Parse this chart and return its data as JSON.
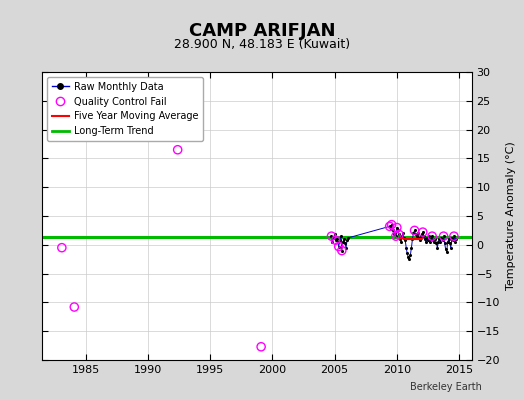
{
  "title": "CAMP ARIFJAN",
  "subtitle": "28.900 N, 48.183 E (Kuwait)",
  "ylabel": "Temperature Anomaly (°C)",
  "credit": "Berkeley Earth",
  "xlim": [
    1981.5,
    2016
  ],
  "ylim": [
    -20,
    30
  ],
  "yticks": [
    -20,
    -15,
    -10,
    -5,
    0,
    5,
    10,
    15,
    20,
    25,
    30
  ],
  "xticks": [
    1985,
    1990,
    1995,
    2000,
    2005,
    2010,
    2015
  ],
  "background_color": "#d8d8d8",
  "plot_bg_color": "#ffffff",
  "long_term_trend_y": 1.3,
  "long_term_trend_color": "#00bb00",
  "five_year_avg_color": "#ff0000",
  "raw_line_color": "#0000cc",
  "raw_dot_color": "#000000",
  "qc_fail_color": "#ff00ff",
  "isolated_qc_points": [
    [
      1983.1,
      -0.5
    ],
    [
      1984.1,
      -10.8
    ],
    [
      1992.4,
      16.5
    ],
    [
      1999.1,
      -17.7
    ]
  ],
  "connected_data": [
    [
      2004.75,
      1.5
    ],
    [
      2004.83,
      0.5
    ],
    [
      2004.92,
      1.2
    ],
    [
      2005.0,
      1.8
    ],
    [
      2005.08,
      0.8
    ],
    [
      2005.17,
      1.0
    ],
    [
      2005.25,
      0.5
    ],
    [
      2005.33,
      -0.3
    ],
    [
      2005.42,
      0.8
    ],
    [
      2005.5,
      1.5
    ],
    [
      2005.58,
      -1.0
    ],
    [
      2005.67,
      0.5
    ],
    [
      2005.75,
      1.0
    ],
    [
      2005.83,
      0.3
    ],
    [
      2005.92,
      -0.5
    ],
    [
      2006.0,
      0.8
    ],
    [
      2006.08,
      1.2
    ],
    [
      2009.42,
      3.2
    ],
    [
      2009.5,
      2.8
    ],
    [
      2009.58,
      3.5
    ],
    [
      2009.67,
      2.5
    ],
    [
      2009.75,
      1.8
    ],
    [
      2009.83,
      2.0
    ],
    [
      2009.92,
      1.5
    ],
    [
      2010.0,
      3.0
    ],
    [
      2010.08,
      2.5
    ],
    [
      2010.17,
      1.8
    ],
    [
      2010.25,
      1.0
    ],
    [
      2010.33,
      0.5
    ],
    [
      2010.42,
      1.5
    ],
    [
      2010.5,
      2.0
    ],
    [
      2010.58,
      1.2
    ],
    [
      2010.67,
      0.8
    ],
    [
      2010.75,
      -0.5
    ],
    [
      2010.83,
      -1.5
    ],
    [
      2010.92,
      -2.2
    ],
    [
      2011.0,
      -2.5
    ],
    [
      2011.08,
      -1.8
    ],
    [
      2011.17,
      -0.5
    ],
    [
      2011.25,
      1.0
    ],
    [
      2011.33,
      2.0
    ],
    [
      2011.42,
      2.5
    ],
    [
      2011.5,
      1.8
    ],
    [
      2011.58,
      1.5
    ],
    [
      2011.67,
      2.0
    ],
    [
      2011.75,
      1.2
    ],
    [
      2011.83,
      0.8
    ],
    [
      2011.92,
      1.5
    ],
    [
      2012.0,
      1.8
    ],
    [
      2012.08,
      2.2
    ],
    [
      2012.17,
      1.5
    ],
    [
      2012.25,
      1.0
    ],
    [
      2012.33,
      0.5
    ],
    [
      2012.42,
      1.2
    ],
    [
      2012.5,
      0.8
    ],
    [
      2012.58,
      1.5
    ],
    [
      2012.67,
      0.5
    ],
    [
      2012.75,
      1.0
    ],
    [
      2012.83,
      1.5
    ],
    [
      2012.92,
      0.8
    ],
    [
      2013.0,
      0.5
    ],
    [
      2013.08,
      1.0
    ],
    [
      2013.17,
      0.3
    ],
    [
      2013.25,
      -0.5
    ],
    [
      2013.33,
      0.5
    ],
    [
      2013.42,
      1.0
    ],
    [
      2013.5,
      0.5
    ],
    [
      2013.58,
      1.2
    ],
    [
      2013.67,
      0.8
    ],
    [
      2013.75,
      1.5
    ],
    [
      2013.83,
      0.3
    ],
    [
      2013.92,
      -0.8
    ],
    [
      2014.0,
      -1.2
    ],
    [
      2014.08,
      0.5
    ],
    [
      2014.17,
      1.0
    ],
    [
      2014.25,
      0.3
    ],
    [
      2014.33,
      -0.5
    ],
    [
      2014.42,
      1.2
    ],
    [
      2014.5,
      0.8
    ],
    [
      2014.58,
      1.5
    ],
    [
      2014.67,
      0.5
    ],
    [
      2014.75,
      1.0
    ]
  ],
  "qc_fail_connected": [
    [
      2004.75,
      1.5
    ],
    [
      2005.08,
      0.8
    ],
    [
      2005.33,
      -0.3
    ],
    [
      2005.58,
      -1.0
    ],
    [
      2009.42,
      3.2
    ],
    [
      2009.58,
      3.5
    ],
    [
      2009.92,
      1.5
    ],
    [
      2010.0,
      3.0
    ],
    [
      2010.17,
      1.8
    ],
    [
      2011.42,
      2.5
    ],
    [
      2012.08,
      2.2
    ],
    [
      2012.83,
      1.5
    ],
    [
      2013.75,
      1.5
    ],
    [
      2014.58,
      1.5
    ]
  ],
  "five_year_avg": [
    [
      2010.25,
      1.2
    ],
    [
      2010.5,
      1.1
    ],
    [
      2010.75,
      1.0
    ],
    [
      2011.0,
      1.0
    ],
    [
      2011.25,
      1.0
    ],
    [
      2011.5,
      1.0
    ],
    [
      2011.75,
      1.0
    ],
    [
      2012.0,
      1.0
    ]
  ]
}
